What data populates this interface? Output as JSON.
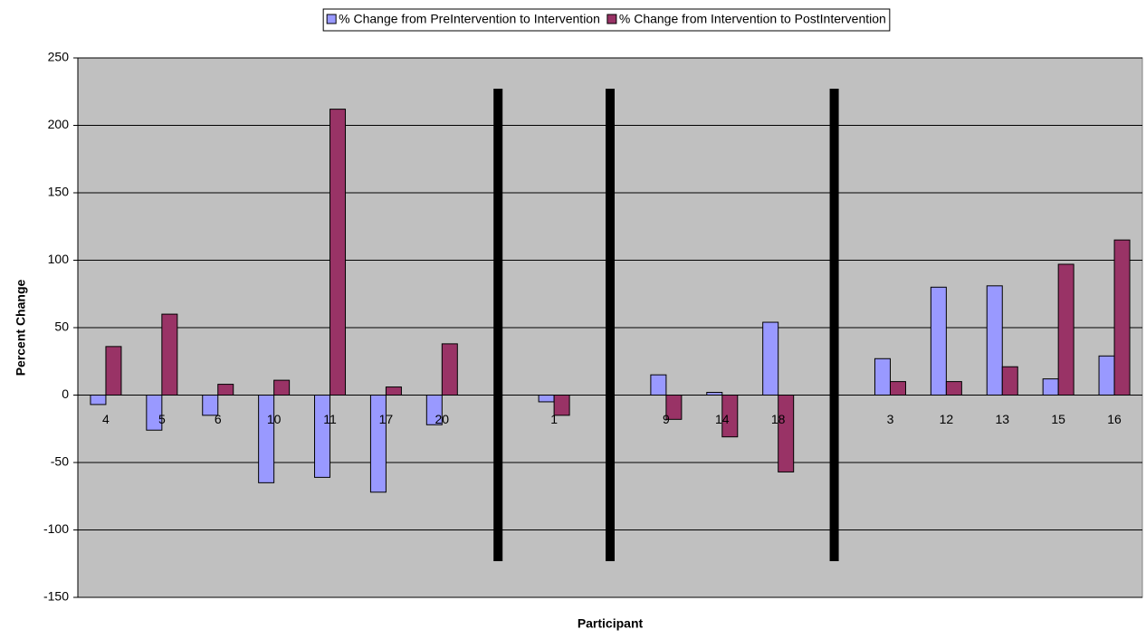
{
  "chart_data": {
    "type": "bar",
    "x_label": "Participant",
    "y_label": "Percent Change",
    "categories": [
      "4",
      "5",
      "6",
      "10",
      "11",
      "17",
      "20",
      null,
      "1",
      null,
      "9",
      "14",
      "18",
      null,
      "3",
      "12",
      "13",
      "15",
      "16"
    ],
    "series": [
      {
        "name": "% Change from PreIntervention to Intervention",
        "color": "#9999ff",
        "values": [
          -7,
          -26,
          -15,
          -65,
          -61,
          -72,
          -22,
          null,
          -5,
          null,
          15,
          2,
          54,
          null,
          27,
          80,
          81,
          12,
          29
        ]
      },
      {
        "name": "% Change from Intervention to PostIntervention",
        "color": "#993366",
        "values": [
          36,
          60,
          8,
          11,
          212,
          6,
          38,
          null,
          -15,
          null,
          -18,
          -31,
          -57,
          null,
          10,
          10,
          21,
          97,
          115
        ]
      }
    ],
    "ylim": [
      -150,
      250
    ],
    "yticks": [
      -150,
      -100,
      -50,
      0,
      50,
      100,
      150,
      200,
      250
    ],
    "grid": true,
    "legend": "top"
  }
}
